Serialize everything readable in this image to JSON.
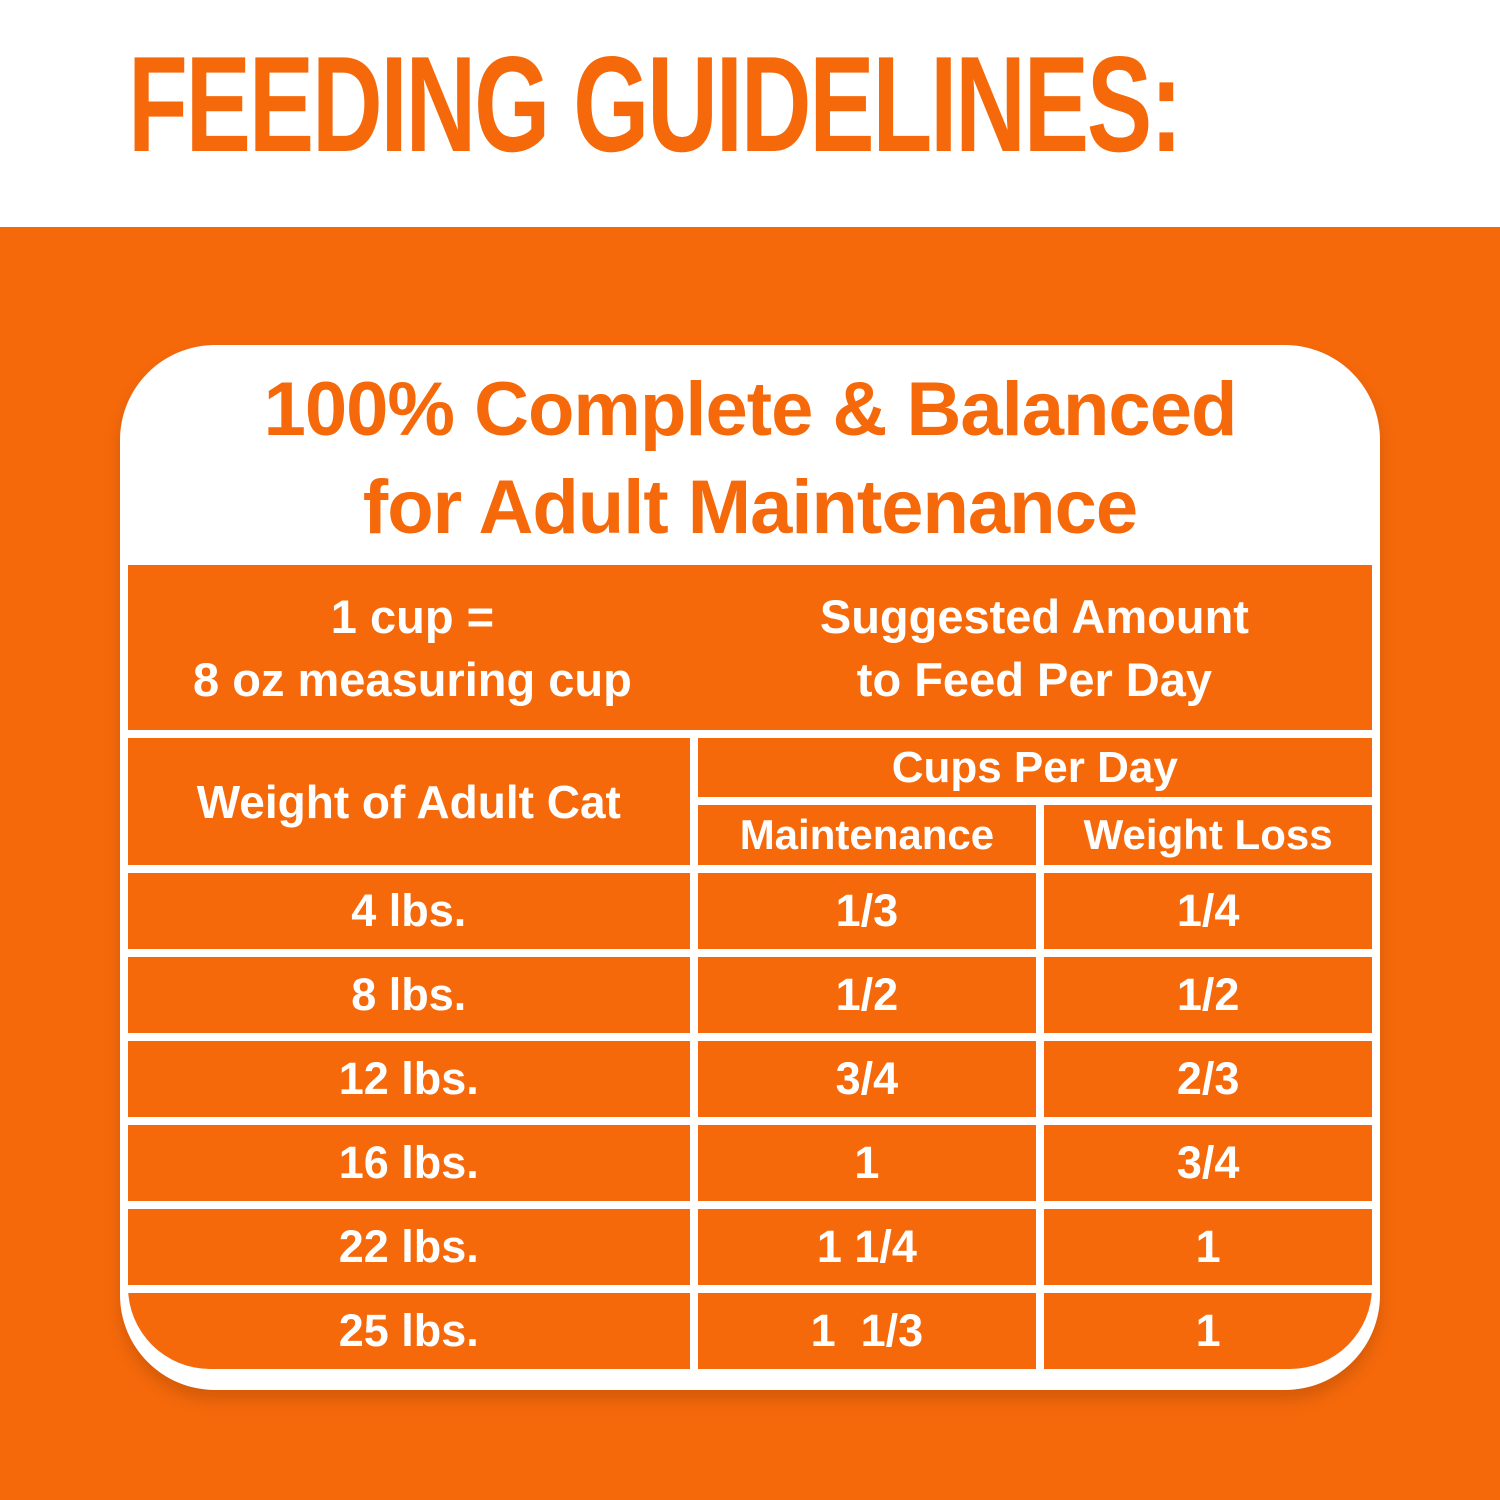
{
  "title": "FEEDING GUIDELINES:",
  "colors": {
    "orange": "#F5690B",
    "white": "#FFFFFF"
  },
  "panel": {
    "heading_line1": "100% Complete & Balanced",
    "heading_line2": "for Adult Maintenance"
  },
  "table": {
    "cup_note_line1": "1 cup =",
    "cup_note_line2": "8 oz measuring cup",
    "suggested_line1": "Suggested Amount",
    "suggested_line2": "to Feed Per Day",
    "weight_header": "Weight of Adult Cat",
    "cups_per_day_header": "Cups Per Day",
    "maintenance_header": "Maintenance",
    "weight_loss_header": "Weight Loss",
    "rows": [
      {
        "weight": "4 lbs.",
        "maintenance": "1/3",
        "weight_loss": "1/4"
      },
      {
        "weight": "8 lbs.",
        "maintenance": "1/2",
        "weight_loss": "1/2"
      },
      {
        "weight": "12 lbs.",
        "maintenance": "3/4",
        "weight_loss": "2/3"
      },
      {
        "weight": "16 lbs.",
        "maintenance": "1",
        "weight_loss": "3/4"
      },
      {
        "weight": "22 lbs.",
        "maintenance": "1 1/4",
        "weight_loss": "1"
      },
      {
        "weight": "25 lbs.",
        "maintenance": "1  1/3",
        "weight_loss": "1"
      }
    ]
  }
}
